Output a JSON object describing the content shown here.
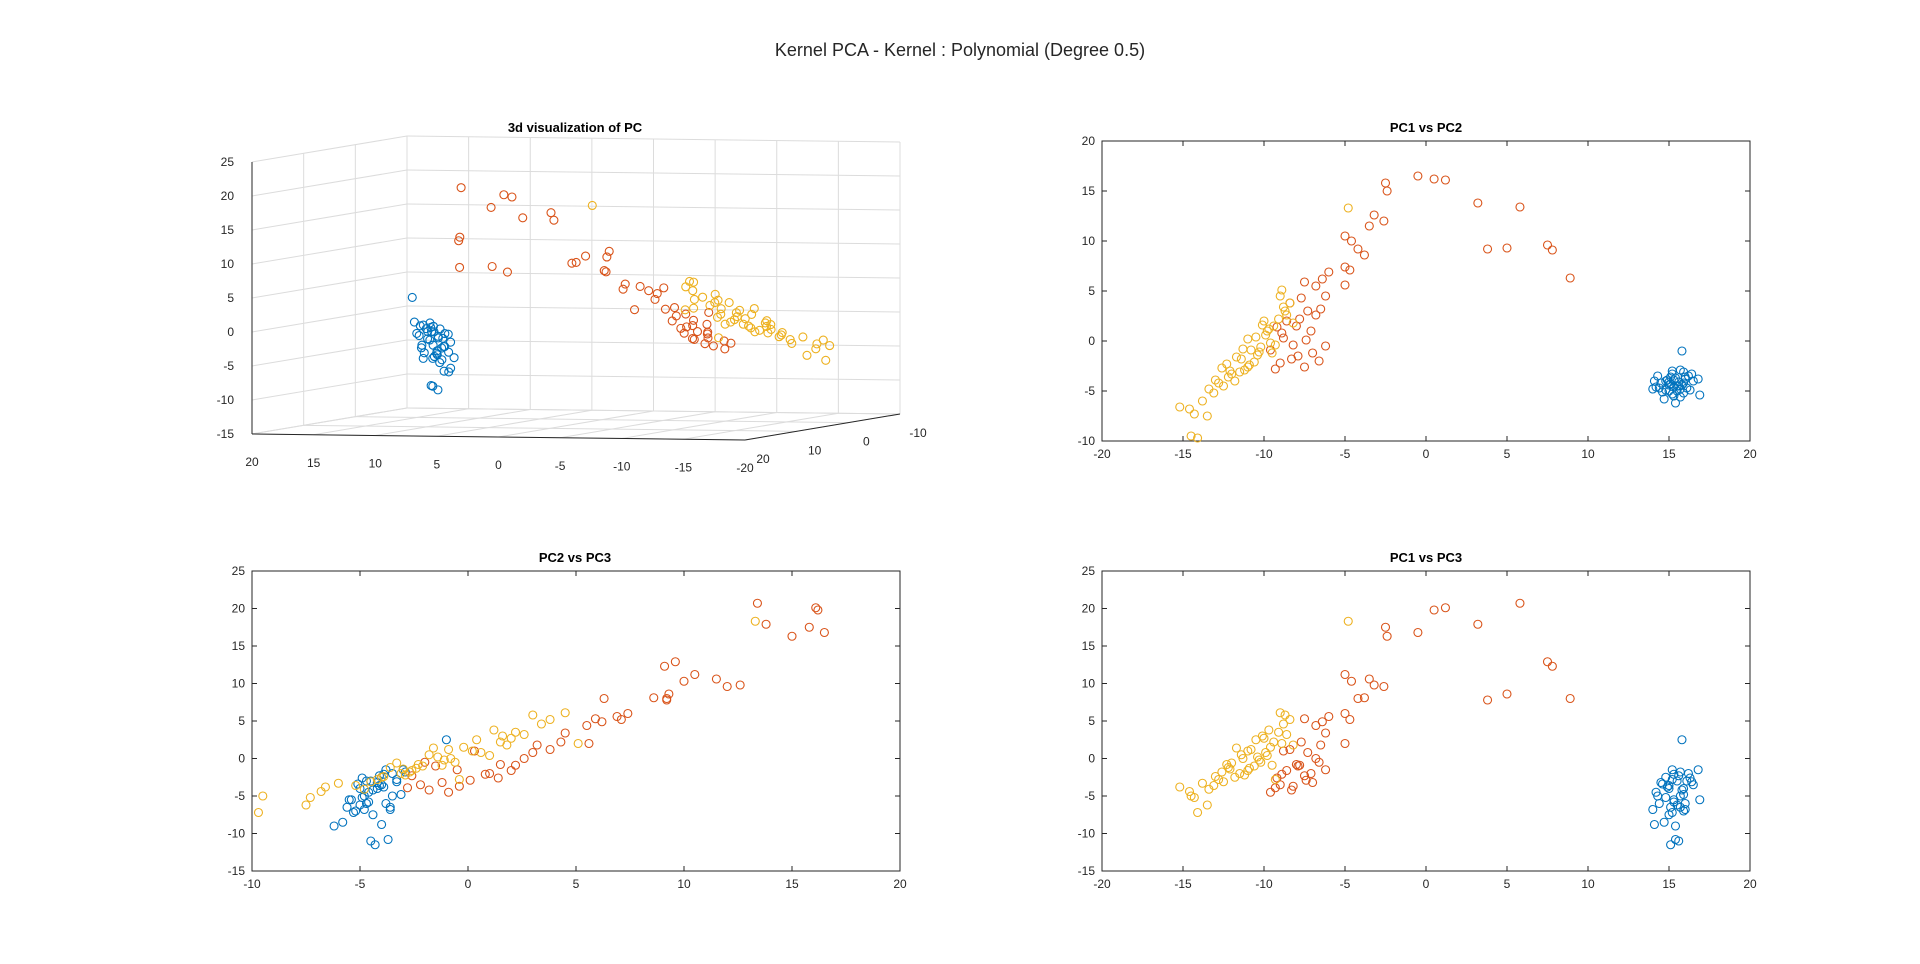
{
  "figure": {
    "suptitle": "Kernel PCA - Kernel : Polynomial (Degree 0.5)"
  },
  "colors": {
    "setosa": "#0072BD",
    "versicolor": "#D95319",
    "virginica": "#EDB120"
  },
  "chart_data": [
    {
      "id": "pc3d",
      "type": "scatter3d",
      "title": "3d visualization of PC",
      "xlim": [
        -20,
        20
      ],
      "ylim": [
        -10,
        20
      ],
      "zlim": [
        -15,
        25
      ],
      "xticks": [
        20,
        15,
        10,
        5,
        0,
        -5,
        -10,
        -15,
        -20
      ],
      "yticks": [
        20,
        10,
        0,
        -10
      ],
      "zticks": [
        25,
        20,
        15,
        10,
        5,
        0,
        -5,
        -10,
        -15
      ],
      "xtick_labels": [
        "20",
        "15",
        "10",
        "5",
        "0",
        "-5",
        "-10",
        "-15",
        "-20"
      ],
      "ytick_labels": [
        "20",
        "10",
        "0",
        "-10"
      ],
      "ztick_labels": [
        "25",
        "20",
        "15",
        "10",
        "5",
        "0",
        "-5",
        "-10",
        "-15"
      ],
      "grid": true,
      "points_from": "shared data"
    },
    {
      "id": "pc1pc2",
      "type": "scatter",
      "title": "PC1 vs PC2",
      "xlim": [
        -20,
        20
      ],
      "ylim": [
        -10,
        20
      ],
      "xticks": [
        -20,
        -15,
        -10,
        -5,
        0,
        5,
        10,
        15,
        20
      ],
      "yticks": [
        -10,
        -5,
        0,
        5,
        10,
        15,
        20
      ],
      "x_dim": 0,
      "y_dim": 1
    },
    {
      "id": "pc2pc3",
      "type": "scatter",
      "title": "PC2 vs PC3",
      "xlim": [
        -10,
        20
      ],
      "ylim": [
        -15,
        25
      ],
      "xticks": [
        -10,
        -5,
        0,
        5,
        10,
        15,
        20
      ],
      "yticks": [
        -15,
        -10,
        -5,
        0,
        5,
        10,
        15,
        20,
        25
      ],
      "x_dim": 1,
      "y_dim": 2
    },
    {
      "id": "pc1pc3",
      "type": "scatter",
      "title": "PC1 vs PC3",
      "xlim": [
        -20,
        20
      ],
      "ylim": [
        -15,
        25
      ],
      "xticks": [
        -20,
        -15,
        -10,
        -5,
        0,
        5,
        10,
        15,
        20
      ],
      "yticks": [
        -15,
        -10,
        -5,
        0,
        5,
        10,
        15,
        20,
        25
      ],
      "x_dim": 0,
      "y_dim": 2
    }
  ],
  "points": {
    "setosa": [
      [
        15.8,
        -1.0,
        2.5
      ],
      [
        15.2,
        -3.0,
        -1.5
      ],
      [
        14.8,
        -4.0,
        -2.5
      ],
      [
        15.5,
        -4.5,
        -3.0
      ],
      [
        16.2,
        -3.5,
        -2.0
      ],
      [
        15.0,
        -5.0,
        -4.0
      ],
      [
        14.5,
        -4.2,
        -3.2
      ],
      [
        15.7,
        -4.8,
        -5.0
      ],
      [
        16.0,
        -3.8,
        -6.0
      ],
      [
        15.3,
        -5.5,
        -5.5
      ],
      [
        14.2,
        -4.6,
        -4.5
      ],
      [
        16.5,
        -4.0,
        -3.5
      ],
      [
        15.9,
        -5.2,
        -7.0
      ],
      [
        15.1,
        -3.6,
        -6.5
      ],
      [
        14.7,
        -5.8,
        -8.5
      ],
      [
        15.4,
        -6.2,
        -9.0
      ],
      [
        16.8,
        -3.8,
        -1.5
      ],
      [
        16.9,
        -5.4,
        -5.5
      ],
      [
        14.0,
        -4.8,
        -6.8
      ],
      [
        15.6,
        -4.1,
        -2.3
      ],
      [
        15.2,
        -3.3,
        -2.8
      ],
      [
        15.8,
        -4.4,
        -4.2
      ],
      [
        14.9,
        -3.9,
        -3.8
      ],
      [
        16.1,
        -4.7,
        -3.0
      ],
      [
        15.5,
        -5.0,
        -6.2
      ],
      [
        14.3,
        -3.5,
        -5.0
      ],
      [
        15.9,
        -3.1,
        -4.8
      ],
      [
        15.0,
        -4.4,
        -7.5
      ],
      [
        16.3,
        -4.9,
        -2.6
      ],
      [
        14.6,
        -5.1,
        -3.4
      ],
      [
        15.7,
        -2.9,
        -1.8
      ],
      [
        15.3,
        -4.6,
        -5.8
      ],
      [
        14.1,
        -4.0,
        -8.8
      ],
      [
        15.4,
        -3.7,
        -10.8
      ],
      [
        15.1,
        -4.3,
        -11.5
      ],
      [
        15.6,
        -4.5,
        -11.0
      ],
      [
        16.0,
        -3.6,
        -6.8
      ],
      [
        14.8,
        -4.9,
        -5.2
      ],
      [
        15.2,
        -5.3,
        -7.2
      ],
      [
        15.9,
        -4.2,
        -4.0
      ],
      [
        16.4,
        -3.3,
        -3.1
      ],
      [
        14.4,
        -4.7,
        -6.0
      ],
      [
        15.3,
        -3.9,
        -2.1
      ],
      [
        15.7,
        -5.6,
        -6.5
      ],
      [
        15.0,
        -4.1,
        -3.6
      ]
    ],
    "versicolor": [
      [
        -0.5,
        16.5,
        16.8
      ],
      [
        0.5,
        16.2,
        19.8
      ],
      [
        1.2,
        16.1,
        20.1
      ],
      [
        -2.5,
        15.8,
        17.5
      ],
      [
        -2.4,
        15.0,
        16.3
      ],
      [
        3.2,
        13.8,
        17.9
      ],
      [
        5.8,
        13.4,
        20.7
      ],
      [
        -3.2,
        12.6,
        9.8
      ],
      [
        -3.5,
        11.5,
        10.6
      ],
      [
        -5.0,
        10.5,
        11.2
      ],
      [
        -4.6,
        10.0,
        10.3
      ],
      [
        -2.6,
        12.0,
        9.6
      ],
      [
        -4.2,
        9.2,
        8.0
      ],
      [
        -3.8,
        8.6,
        8.1
      ],
      [
        3.8,
        9.2,
        7.8
      ],
      [
        5.0,
        9.3,
        8.6
      ],
      [
        7.5,
        9.6,
        12.9
      ],
      [
        7.8,
        9.1,
        12.3
      ],
      [
        8.9,
        6.3,
        8.0
      ],
      [
        -5.0,
        7.4,
        6.0
      ],
      [
        -4.7,
        7.1,
        5.2
      ],
      [
        -6.0,
        6.9,
        5.6
      ],
      [
        -6.4,
        6.2,
        4.9
      ],
      [
        -7.5,
        5.9,
        5.3
      ],
      [
        -6.8,
        5.5,
        4.4
      ],
      [
        -5.0,
        5.6,
        2.0
      ],
      [
        -6.2,
        4.5,
        3.4
      ],
      [
        -7.7,
        4.3,
        2.2
      ],
      [
        -8.4,
        3.8,
        1.2
      ],
      [
        -7.3,
        3.0,
        0.8
      ],
      [
        -6.8,
        2.6,
        0.0
      ],
      [
        -7.8,
        2.2,
        -0.9
      ],
      [
        -8.6,
        2.0,
        -1.6
      ],
      [
        -9.2,
        1.4,
        -2.6
      ],
      [
        -8.9,
        0.8,
        -2.1
      ],
      [
        -7.4,
        0.1,
        -2.9
      ],
      [
        -8.2,
        -0.4,
        -3.7
      ],
      [
        -9.6,
        -0.9,
        -4.5
      ],
      [
        -7.0,
        -1.2,
        -3.2
      ],
      [
        -8.3,
        -1.8,
        -4.2
      ],
      [
        -7.5,
        -2.6,
        -2.3
      ],
      [
        -9.3,
        -2.8,
        -3.9
      ],
      [
        -6.2,
        -0.5,
        -1.5
      ],
      [
        -7.1,
        1.0,
        -2.0
      ],
      [
        -8.0,
        1.5,
        -0.8
      ],
      [
        -6.5,
        3.2,
        1.8
      ],
      [
        -9.0,
        -2.2,
        -3.5
      ],
      [
        -8.8,
        0.3,
        1.0
      ],
      [
        -7.9,
        -1.5,
        -1.0
      ],
      [
        -6.6,
        -2.0,
        -0.5
      ]
    ],
    "virginica": [
      [
        -4.8,
        13.3,
        18.3
      ],
      [
        -14.5,
        -9.5,
        -5.0
      ],
      [
        -14.1,
        -9.7,
        -7.2
      ],
      [
        -15.2,
        -6.6,
        -3.8
      ],
      [
        -14.6,
        -6.8,
        -4.4
      ],
      [
        -14.3,
        -7.3,
        -5.2
      ],
      [
        -13.5,
        -7.5,
        -6.2
      ],
      [
        -13.1,
        -5.2,
        -3.6
      ],
      [
        -13.4,
        -4.8,
        -4.1
      ],
      [
        -12.5,
        -4.5,
        -3.1
      ],
      [
        -11.8,
        -4.0,
        -2.5
      ],
      [
        -12.2,
        -3.6,
        -1.2
      ],
      [
        -11.5,
        -3.1,
        -2.0
      ],
      [
        -11.0,
        -2.6,
        -1.6
      ],
      [
        -10.6,
        -2.1,
        -1.0
      ],
      [
        -10.4,
        -1.4,
        0.2
      ],
      [
        -10.2,
        -0.6,
        -0.5
      ],
      [
        -11.0,
        0.2,
        1.0
      ],
      [
        -9.8,
        1.0,
        0.4
      ],
      [
        -9.4,
        1.5,
        2.2
      ],
      [
        -10.1,
        1.6,
        3.0
      ],
      [
        -9.1,
        2.2,
        3.5
      ],
      [
        -8.7,
        3.0,
        5.8
      ],
      [
        -8.4,
        3.8,
        5.2
      ],
      [
        -9.0,
        4.5,
        6.1
      ],
      [
        -8.9,
        5.1,
        2.0
      ],
      [
        -12.3,
        -2.3,
        -0.8
      ],
      [
        -11.4,
        -1.8,
        0.5
      ],
      [
        -10.8,
        -0.9,
        1.2
      ],
      [
        -9.6,
        -0.2,
        1.5
      ],
      [
        -12.8,
        -4.2,
        -2.8
      ],
      [
        -11.2,
        -2.9,
        -2.2
      ],
      [
        -10.3,
        -1.1,
        -0.2
      ],
      [
        -9.9,
        0.6,
        0.8
      ],
      [
        -8.6,
        2.6,
        3.2
      ],
      [
        -13.8,
        -6.0,
        -3.3
      ],
      [
        -12.0,
        -3.3,
        -0.6
      ],
      [
        -10.9,
        -2.4,
        -1.3
      ],
      [
        -9.3,
        -0.4,
        -2.8
      ],
      [
        -8.2,
        1.8,
        1.8
      ],
      [
        -11.7,
        -1.6,
        1.4
      ],
      [
        -10.5,
        0.4,
        2.5
      ],
      [
        -9.7,
        1.2,
        3.8
      ],
      [
        -12.6,
        -2.7,
        -1.8
      ],
      [
        -13.0,
        -3.9,
        -2.4
      ],
      [
        -11.3,
        -0.8,
        0.0
      ],
      [
        -10.0,
        2.0,
        2.7
      ],
      [
        -8.8,
        3.4,
        4.6
      ],
      [
        -12.1,
        -3.0,
        -1.4
      ],
      [
        -9.5,
        -1.2,
        -0.9
      ]
    ]
  }
}
